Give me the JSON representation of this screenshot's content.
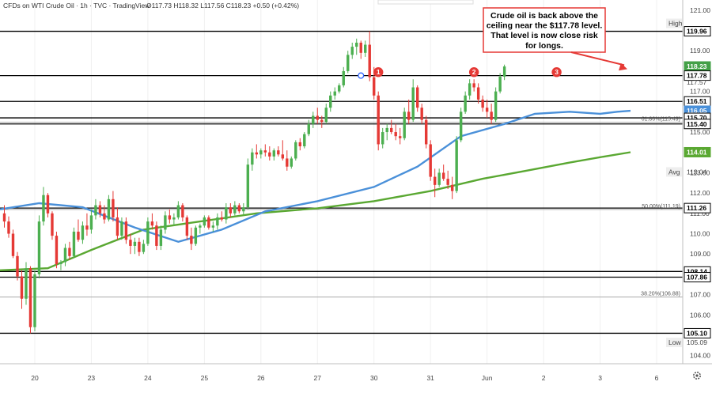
{
  "header": {
    "symbol_line": "CFDs on WTI Crude Oil · 1h · TVC · TradingView",
    "ohlc": "O117.73 H118.32 L117.56 C118.23 +0.50 (+0.42%)"
  },
  "colors": {
    "up": "#26a69a",
    "down": "#ef5350",
    "candle_up": "#4caf50",
    "candle_down": "#e53935",
    "ma_fast": "#4a90d9",
    "ma_slow": "#5aa832",
    "level_line": "#000000",
    "callout_border": "#e53935",
    "badge": "#e53935"
  },
  "chart_data": {
    "type": "candlestick",
    "title": "CFDs on WTI Crude Oil · 1h · TVC · TradingView",
    "price_ticks": [
      121.0,
      120.0,
      119.0,
      118.0,
      117.0,
      116.0,
      115.0,
      114.0,
      113.0,
      112.0,
      111.0,
      110.0,
      109.0,
      108.0,
      107.0,
      106.0,
      105.0,
      104.0
    ],
    "price_tick_labels": [
      "121.00",
      "120.00",
      "119.00",
      "118.00",
      "117.00",
      "116.00",
      "115.00",
      "114.00",
      "113.00",
      "112.00",
      "111.00",
      "110.00",
      "109.00",
      "108.00",
      "107.00",
      "106.00",
      "105.00",
      "104.00"
    ],
    "ylim": [
      103.6,
      121.5
    ],
    "time_ticks": [
      {
        "label": "20",
        "t": 7
      },
      {
        "label": "23",
        "t": 20
      },
      {
        "label": "24",
        "t": 33
      },
      {
        "label": "25",
        "t": 46
      },
      {
        "label": "26",
        "t": 59
      },
      {
        "label": "27",
        "t": 72
      },
      {
        "label": "30",
        "t": 85
      },
      {
        "label": "31",
        "t": 98
      },
      {
        "label": "Jun",
        "t": 111
      },
      {
        "label": "2",
        "t": 124
      },
      {
        "label": "3",
        "t": 137
      },
      {
        "label": "6",
        "t": 150
      }
    ],
    "xlim": [
      -1,
      156
    ],
    "last_bar": 144,
    "ohlc_bars": [
      [
        111.0,
        111.4,
        110.3,
        110.6
      ],
      [
        110.6,
        110.85,
        109.8,
        110.0
      ],
      [
        110.0,
        110.2,
        108.8,
        108.9
      ],
      [
        108.9,
        109.1,
        107.7,
        107.9
      ],
      [
        107.9,
        108.2,
        106.3,
        106.8
      ],
      [
        106.8,
        108.6,
        106.5,
        108.3
      ],
      [
        108.3,
        108.4,
        105.1,
        105.4
      ],
      [
        105.4,
        108.2,
        105.2,
        108.0
      ],
      [
        108.0,
        110.9,
        107.8,
        110.6
      ],
      [
        110.6,
        112.3,
        110.4,
        111.9
      ],
      [
        111.9,
        112.0,
        110.8,
        111.0
      ],
      [
        111.0,
        111.1,
        109.7,
        109.9
      ],
      [
        109.9,
        110.1,
        108.3,
        108.5
      ],
      [
        108.5,
        108.7,
        108.2,
        108.6
      ],
      [
        108.6,
        109.5,
        108.4,
        109.3
      ],
      [
        109.3,
        109.6,
        108.7,
        108.9
      ],
      [
        108.9,
        110.3,
        108.8,
        110.1
      ],
      [
        110.1,
        110.7,
        109.6,
        109.7
      ],
      [
        109.7,
        110.6,
        109.5,
        110.4
      ],
      [
        110.4,
        111.0,
        109.9,
        110.2
      ],
      [
        110.2,
        111.2,
        110.0,
        110.9
      ],
      [
        110.9,
        111.7,
        110.7,
        111.4
      ],
      [
        111.4,
        111.6,
        110.8,
        111.0
      ],
      [
        111.0,
        111.4,
        110.5,
        110.7
      ],
      [
        110.7,
        111.9,
        110.6,
        111.7
      ],
      [
        111.7,
        112.1,
        110.6,
        110.8
      ],
      [
        110.8,
        111.3,
        109.7,
        109.9
      ],
      [
        109.9,
        110.8,
        109.7,
        110.6
      ],
      [
        110.6,
        110.8,
        109.5,
        109.7
      ],
      [
        109.7,
        110.0,
        109.0,
        109.4
      ],
      [
        109.4,
        109.8,
        109.0,
        109.6
      ],
      [
        109.6,
        109.8,
        108.9,
        109.1
      ],
      [
        109.1,
        109.7,
        109.0,
        109.5
      ],
      [
        109.5,
        110.8,
        109.4,
        110.6
      ],
      [
        110.6,
        111.0,
        110.2,
        110.4
      ],
      [
        110.4,
        110.6,
        109.2,
        109.4
      ],
      [
        109.4,
        110.4,
        109.2,
        110.2
      ],
      [
        110.2,
        111.1,
        110.0,
        110.9
      ],
      [
        110.9,
        111.2,
        110.5,
        110.7
      ],
      [
        110.7,
        111.0,
        110.4,
        110.8
      ],
      [
        110.8,
        111.6,
        110.7,
        111.4
      ],
      [
        111.4,
        111.5,
        110.6,
        110.8
      ],
      [
        110.8,
        110.9,
        109.7,
        109.9
      ],
      [
        109.9,
        110.3,
        109.2,
        109.5
      ],
      [
        109.5,
        110.4,
        109.4,
        110.3
      ],
      [
        110.3,
        110.5,
        110.0,
        110.4
      ],
      [
        110.4,
        110.9,
        110.3,
        110.8
      ],
      [
        110.8,
        110.9,
        110.2,
        110.3
      ],
      [
        110.3,
        110.6,
        110.1,
        110.4
      ],
      [
        110.4,
        111.0,
        110.2,
        110.8
      ],
      [
        110.8,
        111.1,
        110.6,
        110.7
      ],
      [
        110.7,
        111.5,
        110.5,
        111.3
      ],
      [
        111.3,
        111.5,
        110.8,
        111.0
      ],
      [
        111.0,
        111.6,
        110.9,
        111.4
      ],
      [
        111.4,
        111.5,
        111.0,
        111.1
      ],
      [
        111.1,
        111.5,
        110.9,
        111.3
      ],
      [
        111.3,
        113.7,
        111.2,
        113.4
      ],
      [
        113.4,
        114.2,
        113.1,
        114.0
      ],
      [
        114.0,
        114.4,
        113.7,
        113.9
      ],
      [
        113.9,
        114.2,
        113.7,
        114.1
      ],
      [
        114.1,
        114.4,
        113.8,
        114.0
      ],
      [
        114.0,
        114.3,
        113.6,
        113.8
      ],
      [
        113.8,
        114.2,
        113.6,
        114.1
      ],
      [
        114.1,
        114.3,
        113.8,
        113.9
      ],
      [
        113.9,
        114.6,
        113.6,
        113.7
      ],
      [
        113.7,
        114.1,
        113.1,
        113.3
      ],
      [
        113.3,
        113.8,
        113.2,
        113.7
      ],
      [
        113.7,
        114.6,
        113.6,
        114.5
      ],
      [
        114.5,
        114.7,
        114.1,
        114.3
      ],
      [
        114.3,
        115.0,
        114.2,
        114.9
      ],
      [
        114.9,
        115.6,
        114.8,
        115.4
      ],
      [
        115.4,
        116.0,
        115.2,
        115.8
      ],
      [
        115.8,
        116.2,
        115.4,
        115.6
      ],
      [
        115.6,
        115.8,
        115.2,
        115.5
      ],
      [
        115.5,
        116.4,
        115.4,
        116.2
      ],
      [
        116.2,
        117.0,
        116.0,
        116.8
      ],
      [
        116.8,
        117.2,
        116.6,
        117.0
      ],
      [
        117.0,
        117.4,
        116.9,
        117.3
      ],
      [
        117.3,
        118.2,
        117.2,
        118.0
      ],
      [
        118.0,
        119.0,
        117.9,
        118.8
      ],
      [
        118.8,
        119.4,
        118.6,
        119.2
      ],
      [
        119.2,
        119.6,
        118.8,
        119.4
      ],
      [
        119.4,
        119.5,
        118.6,
        118.9
      ],
      [
        118.9,
        119.5,
        118.7,
        119.3
      ],
      [
        119.3,
        119.96,
        117.5,
        117.7
      ],
      [
        117.7,
        118.2,
        116.6,
        116.8
      ],
      [
        116.8,
        117.0,
        114.1,
        114.4
      ],
      [
        114.4,
        115.2,
        114.2,
        115.0
      ],
      [
        115.0,
        115.4,
        114.6,
        115.2
      ],
      [
        115.2,
        115.6,
        114.9,
        115.0
      ],
      [
        115.0,
        115.4,
        114.6,
        114.8
      ],
      [
        114.8,
        115.2,
        114.4,
        114.7
      ],
      [
        114.7,
        116.2,
        114.6,
        116.0
      ],
      [
        116.0,
        116.6,
        115.4,
        115.6
      ],
      [
        115.6,
        117.6,
        115.5,
        117.2
      ],
      [
        117.2,
        117.3,
        116.0,
        116.2
      ],
      [
        116.2,
        116.4,
        115.4,
        115.6
      ],
      [
        115.6,
        115.8,
        114.2,
        114.4
      ],
      [
        114.4,
        114.6,
        112.6,
        112.8
      ],
      [
        112.8,
        113.2,
        111.8,
        112.4
      ],
      [
        112.4,
        113.2,
        112.3,
        113.0
      ],
      [
        113.0,
        113.4,
        112.6,
        112.7
      ],
      [
        112.7,
        113.1,
        112.2,
        112.4
      ],
      [
        112.4,
        112.8,
        111.7,
        112.1
      ],
      [
        112.1,
        114.8,
        112.0,
        114.6
      ],
      [
        114.6,
        116.2,
        114.5,
        116.0
      ],
      [
        116.0,
        117.0,
        115.9,
        116.8
      ],
      [
        116.8,
        117.6,
        116.6,
        117.4
      ],
      [
        117.4,
        117.6,
        117.0,
        117.2
      ],
      [
        117.2,
        117.4,
        116.4,
        116.6
      ],
      [
        116.6,
        116.8,
        116.0,
        116.2
      ],
      [
        116.2,
        116.6,
        115.7,
        116.0
      ],
      [
        116.0,
        116.4,
        115.4,
        115.6
      ],
      [
        115.6,
        117.2,
        115.5,
        117.0
      ],
      [
        117.0,
        117.9,
        116.9,
        117.73
      ],
      [
        117.73,
        118.32,
        117.56,
        118.23
      ]
    ],
    "horizontal_levels": [
      {
        "price": 119.96,
        "label": "119.96"
      },
      {
        "price": 117.78,
        "label": "117.78"
      },
      {
        "price": 116.51,
        "label": "116.51"
      },
      {
        "price": 115.7,
        "label": "115.70"
      },
      {
        "price": 115.4,
        "label": "115.40"
      },
      {
        "price": 111.26,
        "label": "111.26"
      },
      {
        "price": 108.14,
        "label": "108.14"
      },
      {
        "price": 107.86,
        "label": "107.86"
      },
      {
        "price": 105.1,
        "label": "105.10"
      }
    ],
    "fib_levels": [
      {
        "price": 115.49,
        "label": "61.80%(115.49)"
      },
      {
        "price": 111.19,
        "label": "50.00%(111.19)"
      },
      {
        "price": 106.88,
        "label": "38.20%(106.88)"
      }
    ],
    "ma_fast": {
      "name": "",
      "last_value": 116.05,
      "points": [
        [
          -1,
          111.2
        ],
        [
          8,
          111.5
        ],
        [
          18,
          111.3
        ],
        [
          30,
          110.3
        ],
        [
          40,
          109.6
        ],
        [
          50,
          110.2
        ],
        [
          60,
          111.1
        ],
        [
          72,
          111.6
        ],
        [
          85,
          112.3
        ],
        [
          95,
          113.3
        ],
        [
          105,
          114.8
        ],
        [
          115,
          115.4
        ],
        [
          122,
          115.9
        ],
        [
          130,
          116.0
        ],
        [
          137,
          115.9
        ],
        [
          141,
          116.0
        ],
        [
          144,
          116.05
        ]
      ]
    },
    "ma_slow": {
      "name": "",
      "last_value": 114.01,
      "points": [
        [
          -1,
          108.2
        ],
        [
          10,
          108.3
        ],
        [
          20,
          109.2
        ],
        [
          32,
          110.2
        ],
        [
          45,
          110.6
        ],
        [
          58,
          111.0
        ],
        [
          72,
          111.25
        ],
        [
          85,
          111.6
        ],
        [
          98,
          112.1
        ],
        [
          110,
          112.7
        ],
        [
          120,
          113.1
        ],
        [
          130,
          113.5
        ],
        [
          138,
          113.8
        ],
        [
          144,
          114.01
        ]
      ]
    },
    "price_labels": [
      {
        "text": "High",
        "price": 120.35,
        "kind": "tag"
      },
      {
        "text": "119.96",
        "price": 119.96,
        "kind": "box"
      },
      {
        "text": "118.23",
        "price": 118.23,
        "kind": "fill-green"
      },
      {
        "text": "117.78",
        "price": 117.78,
        "kind": "box"
      },
      {
        "text": "117.57",
        "price": 117.45,
        "kind": "plain"
      },
      {
        "text": "116.51",
        "price": 116.51,
        "kind": "box"
      },
      {
        "text": "116.05",
        "price": 116.05,
        "kind": "fill-blue"
      },
      {
        "text": "115.70",
        "price": 115.7,
        "kind": "box"
      },
      {
        "text": "115.40",
        "price": 115.4,
        "kind": "box"
      },
      {
        "text": "114.01",
        "price": 114.01,
        "kind": "fill-green"
      },
      {
        "text": "Avg",
        "price": 113.04,
        "kind": "tag"
      },
      {
        "text": "113.04",
        "price": 113.04,
        "kind": "plain"
      },
      {
        "text": "111.26",
        "price": 111.26,
        "kind": "box"
      },
      {
        "text": "108.14",
        "price": 108.14,
        "kind": "box"
      },
      {
        "text": "107.86",
        "price": 107.86,
        "kind": "box"
      },
      {
        "text": "105.10",
        "price": 105.1,
        "kind": "box"
      },
      {
        "text": "Low",
        "price": 104.65,
        "kind": "tag"
      },
      {
        "text": "105.09",
        "price": 104.65,
        "kind": "plain"
      }
    ],
    "markers": [
      {
        "label": "1",
        "t": 86,
        "price": 117.95
      },
      {
        "label": "2",
        "t": 108,
        "price": 117.95
      },
      {
        "label": "3",
        "t": 127,
        "price": 117.95
      }
    ],
    "anchor_dot": {
      "t": 82,
      "price": 117.78
    },
    "annotation": {
      "lines": [
        "Crude oil is back above the",
        "ceiling near the $117.78 level.",
        "That level is now close risk",
        "for longs."
      ]
    }
  }
}
